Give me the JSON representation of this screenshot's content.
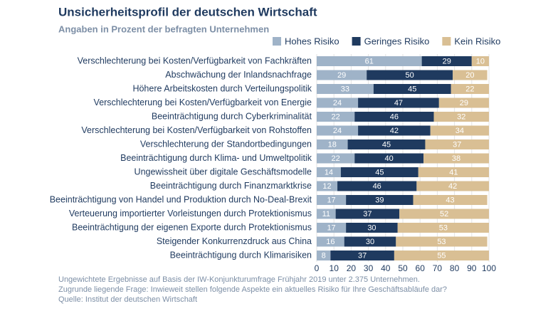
{
  "chart_data": {
    "type": "stacked-barh",
    "title": "Unsicherheitsprofil der deutschen Wirtschaft",
    "subtitle": "Angaben in Prozent der befragten Unternehmen",
    "categories": [
      "Verschlechterung bei Kosten/Verfügbarkeit von Fachkräften",
      "Abschwächung der Inlandsnachfrage",
      "Höhere Arbeitskosten durch Verteilungspolitik",
      "Verschlechterung bei Kosten/Verfügbarkeit von Energie",
      "Beeinträchtigung durch Cyberkriminalität",
      "Verschlechterung bei Kosten/Verfügbarkeit von Rohstoffen",
      "Verschlechterung der Standortbedingungen",
      "Beeinträchtigung durch Klima- und Umweltpolitik",
      "Ungewissheit über digitale Geschäftsmodelle",
      "Beeinträchtigung durch Finanzmarktkrise",
      "Beeinträchtigung von Handel und Produktion durch No-Deal-Brexit",
      "Verteuerung importierter Vorleistungen durch Protektionismus",
      "Beeinträchtigung der eigenen Exporte durch Protektionismus",
      "Steigender Konkurrenzdruck aus China",
      "Beeinträchtigung durch Klimarisiken"
    ],
    "series": [
      {
        "name": "Hohes Risiko",
        "color": "#9fb3c8",
        "values": [
          61,
          29,
          33,
          24,
          22,
          24,
          18,
          22,
          14,
          12,
          17,
          11,
          17,
          16,
          8
        ]
      },
      {
        "name": "Geringes Risiko",
        "color": "#1f3a5f",
        "values": [
          29,
          50,
          45,
          47,
          46,
          42,
          45,
          40,
          45,
          46,
          39,
          37,
          30,
          30,
          37
        ]
      },
      {
        "name": "Kein Risiko",
        "color": "#d9bf94",
        "values": [
          10,
          20,
          22,
          29,
          32,
          34,
          37,
          38,
          41,
          42,
          43,
          52,
          53,
          53,
          55
        ]
      }
    ],
    "xlim": [
      0,
      100
    ],
    "xticks": [
      0,
      10,
      20,
      30,
      40,
      50,
      60,
      70,
      80,
      90,
      100
    ],
    "grid": true,
    "notes": [
      "Ungewichtete Ergebnisse auf Basis der IW-Konjunkturumfrage Frühjahr 2019 unter 2.375 Unternehmen.",
      "Zugrunde liegende Frage: Inwieweit stellen folgende Aspekte ein aktuelles Risiko für Ihre Geschäftsabläufe dar?",
      "Quelle: Institut der deutschen Wirtschaft"
    ]
  }
}
